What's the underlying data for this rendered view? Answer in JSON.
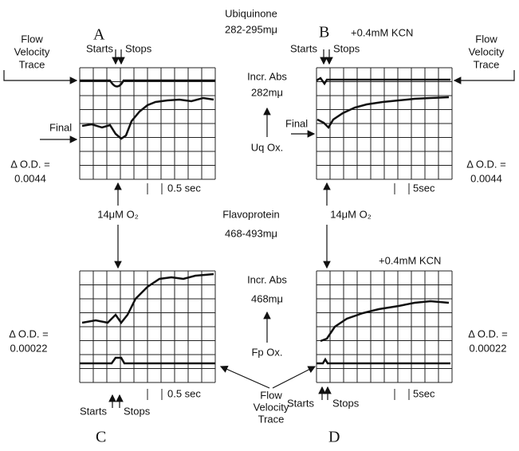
{
  "header": {
    "substance_top": "Ubiquinone",
    "wavelength_top": "282-295mμ",
    "substance_mid": "Flavoprotein",
    "wavelength_mid": "468-493mμ"
  },
  "center_top": {
    "incr": "Incr. Abs",
    "wavelength": "282mμ",
    "ox": "Uq Ox."
  },
  "center_bottom": {
    "incr": "Incr. Abs",
    "wavelength": "468mμ",
    "ox": "Fp Ox.",
    "flow": [
      "Flow",
      "Velocity",
      "Trace"
    ]
  },
  "oxygen": {
    "left": "14μM O₂",
    "right": "14μM O₂"
  },
  "panels": [
    {
      "label": "A",
      "flow": [
        "Flow",
        "Velocity",
        "Trace"
      ],
      "starts": "Starts",
      "stops": "Stops",
      "final": "Final",
      "delta_od": "Δ O.D. =",
      "od_value": "0.0044",
      "time_scale": "0.5 sec"
    },
    {
      "label": "B",
      "note": "+0.4mM KCN",
      "flow": [
        "Flow",
        "Velocity",
        "Trace"
      ],
      "starts": "Starts",
      "stops": "Stops",
      "final": "Final",
      "delta_od": "Δ O.D. =",
      "od_value": "0.0044",
      "time_scale": "5sec"
    },
    {
      "label": "C",
      "starts": "Starts",
      "stops": "Stops",
      "delta_od": "Δ O.D. =",
      "od_value": "0.00022",
      "time_scale": "0.5 sec"
    },
    {
      "label": "D",
      "note": "+0.4mM KCN",
      "starts": "Starts",
      "stops": "Stops",
      "delta_od": "Δ O.D. =",
      "od_value": "0.00022",
      "time_scale": "5sec"
    }
  ]
}
